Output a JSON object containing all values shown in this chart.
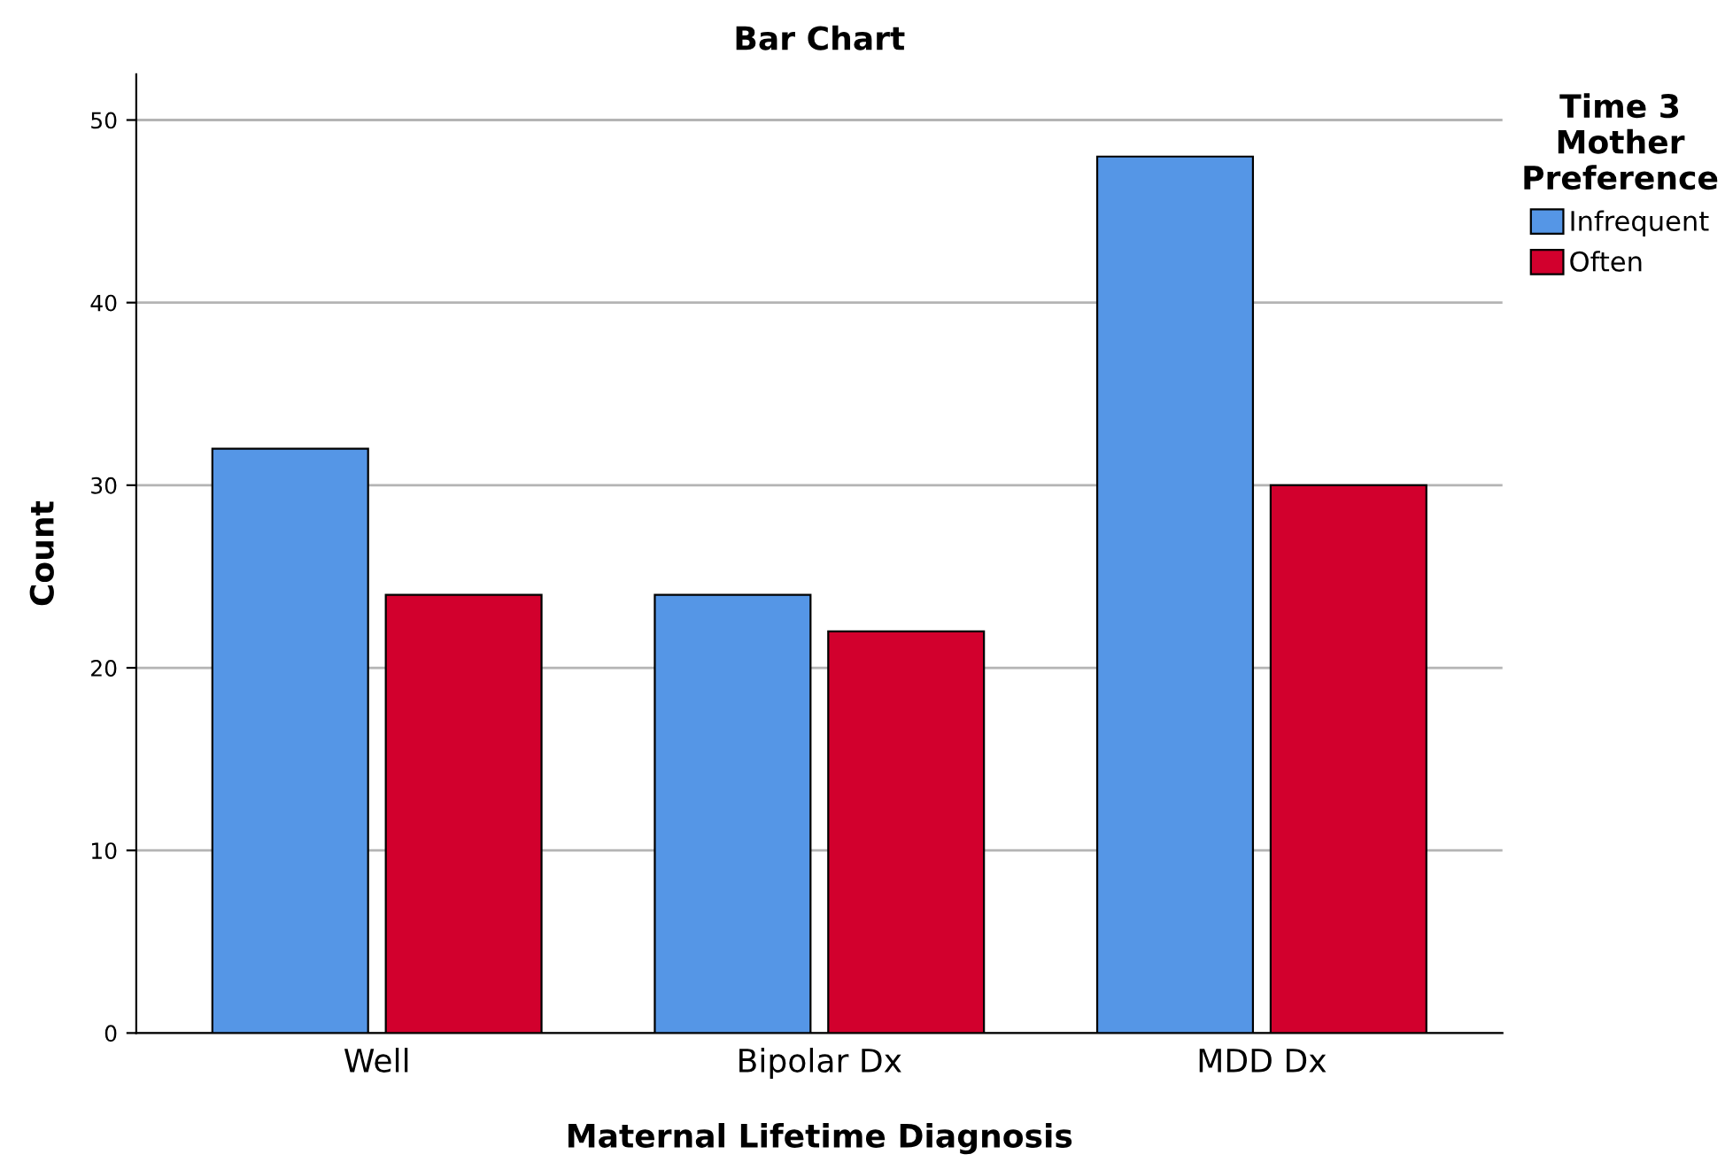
{
  "chart_data": {
    "type": "bar",
    "title": "Bar Chart",
    "xlabel": "Maternal Lifetime Diagnosis",
    "ylabel": "Count",
    "legend_title": "Time 3\nMother\nPreference",
    "categories": [
      "Well",
      "Bipolar Dx",
      "MDD Dx"
    ],
    "series": [
      {
        "name": "Infrequent",
        "color": "#5596e6",
        "values": [
          32,
          24,
          48
        ]
      },
      {
        "name": "Often",
        "color": "#d2002d",
        "values": [
          24,
          22,
          30
        ]
      }
    ],
    "ylim": [
      0,
      52.5
    ],
    "yticks": [
      0,
      10,
      20,
      30,
      40,
      50
    ],
    "grid": "y",
    "legend": "top right"
  }
}
